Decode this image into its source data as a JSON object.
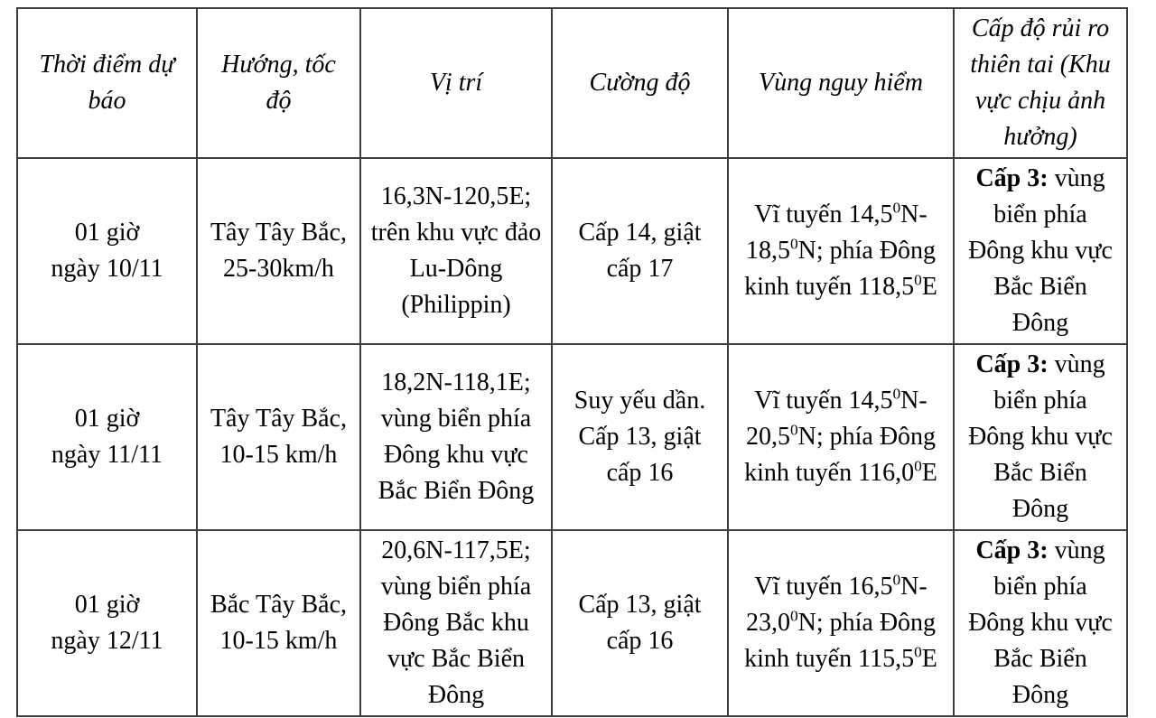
{
  "colors": {
    "background": "#ffffff",
    "border": "#3d3d3d",
    "text": "#000000"
  },
  "table": {
    "headers": [
      {
        "label": "Thời điểm dự\nbáo"
      },
      {
        "label": "Hướng, tốc\nđộ"
      },
      {
        "label": "Vị trí"
      },
      {
        "label": "Cường độ"
      },
      {
        "label": "Vùng nguy hiểm"
      },
      {
        "label": "Cấp độ rủi ro\nthiên tai (Khu\nvực chịu ảnh\nhưởng)"
      }
    ],
    "rows": [
      {
        "time": "01 giờ\nngày 10/11",
        "direction_speed": "Tây Tây Bắc,\n25-30km/h",
        "position": "16,3N-120,5E;\ntrên khu vực đảo\nLu-Dông\n(Philippin)",
        "intensity": "Cấp 14, giật\ncấp 17",
        "danger_zone": "Vĩ tuyến 14,5^0N-\n18,5^0N; phía Đông\nkinh tuyến 118,5^0E",
        "risk_level_bold": "Cấp 3:",
        "risk_level_text": " vùng\nbiển phía\nĐông khu vực\nBắc Biển\nĐông"
      },
      {
        "time": "01 giờ\nngày 11/11",
        "direction_speed": "Tây Tây Bắc,\n10-15 km/h",
        "position": "18,2N-118,1E;\nvùng biển phía\nĐông khu vực\nBắc Biển Đông",
        "intensity": "Suy yếu dần.\nCấp 13, giật\ncấp 16",
        "danger_zone": "Vĩ tuyến 14,5^0N-\n20,5^0N; phía Đông\nkinh tuyến 116,0^0E",
        "risk_level_bold": "Cấp 3:",
        "risk_level_text": " vùng\nbiển phía\nĐông khu vực\nBắc Biển\nĐông"
      },
      {
        "time": "01 giờ\nngày 12/11",
        "direction_speed": "Bắc Tây Bắc,\n10-15 km/h",
        "position": "20,6N-117,5E;\nvùng biển phía\nĐông Bắc khu\nvực Bắc Biển\nĐông",
        "intensity": "Cấp 13, giật\ncấp 16",
        "danger_zone": "Vĩ tuyến 16,5^0N-\n23,0^0N; phía Đông\nkinh tuyến 115,5^0E",
        "risk_level_bold": "Cấp 3:",
        "risk_level_text": " vùng\nbiển phía\nĐông khu vực\nBắc Biển\nĐông"
      }
    ]
  }
}
